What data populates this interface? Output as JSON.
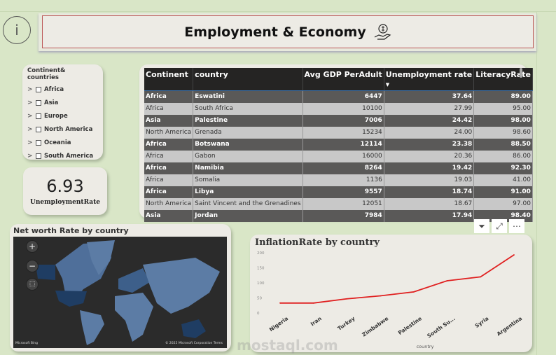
{
  "header": {
    "title": "Employment & Economy",
    "info_icon": "info-icon",
    "money_icon": "hand-money-icon"
  },
  "slicer": {
    "title": "Continent& countries",
    "items": [
      "Africa",
      "Asia",
      "Europe",
      "North America",
      "Oceania",
      "South America"
    ]
  },
  "kpi": {
    "value": "6.93",
    "label": "UnemploymentRate"
  },
  "table": {
    "columns": [
      "Continent",
      "country",
      "Avg GDP PerAdult",
      "Unemployment rate",
      "LiteracyRate"
    ],
    "rows": [
      [
        "Africa",
        "Eswatini",
        "6447",
        "37.64",
        "89.00"
      ],
      [
        "Africa",
        "South Africa",
        "10100",
        "27.99",
        "95.00"
      ],
      [
        "Asia",
        "Palestine",
        "7006",
        "24.42",
        "98.00"
      ],
      [
        "North America",
        "Grenada",
        "15234",
        "24.00",
        "98.60"
      ],
      [
        "Africa",
        "Botswana",
        "12114",
        "23.38",
        "88.50"
      ],
      [
        "Africa",
        "Gabon",
        "16000",
        "20.36",
        "86.00"
      ],
      [
        "Africa",
        "Namibia",
        "8264",
        "19.42",
        "92.30"
      ],
      [
        "Africa",
        "Somalia",
        "1136",
        "19.03",
        "41.00"
      ],
      [
        "Africa",
        "Libya",
        "9557",
        "18.74",
        "91.00"
      ],
      [
        "North America",
        "Saint Vincent and the Grenadines",
        "12051",
        "18.67",
        "97.00"
      ],
      [
        "Asia",
        "Jordan",
        "7984",
        "17.94",
        "98.40"
      ]
    ]
  },
  "visual_icons": [
    "filter-icon",
    "focus-mode-icon",
    "more-options-icon"
  ],
  "map": {
    "title": "Net worth Rate by country",
    "credit": "Microsoft Bing",
    "copyright": "© 2025 Microsoft Corporation Terms"
  },
  "chart_data": {
    "type": "line",
    "title": "InflationRate by country",
    "xlabel": "country",
    "ylabel": "",
    "categories": [
      "Nigeria",
      "Iran",
      "Turkey",
      "Zimbabwe",
      "Palestine",
      "South Su...",
      "Syria",
      "Argentina"
    ],
    "values": [
      33,
      33,
      47,
      57,
      70,
      107,
      120,
      193
    ],
    "ylim": [
      0,
      200
    ],
    "yticks": [
      "0",
      "50",
      "100",
      "150",
      "200"
    ],
    "color": "#e02020"
  },
  "watermark": "mostaql.com"
}
